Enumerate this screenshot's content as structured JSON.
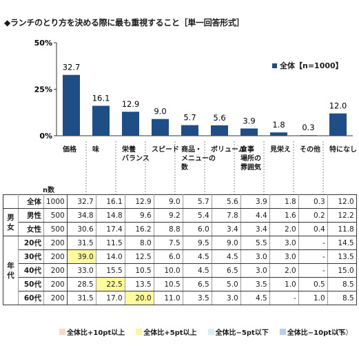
{
  "title": "◆ランチのとり方を決める際に最も重視すること［単一回答形式］",
  "chart_data": {
    "type": "bar",
    "categories": [
      "価格",
      "味",
      "栄養バランス",
      "スピード",
      "商品・メニューの数",
      "ボリューム",
      "食事場所の雰囲気",
      "見栄え",
      "その他",
      "特になし"
    ],
    "category_lines": [
      [
        "価格"
      ],
      [
        "味"
      ],
      [
        "栄養",
        "バランス"
      ],
      [
        "スピード"
      ],
      [
        "商品・",
        "メニューの",
        "数"
      ],
      [
        "ボリューム"
      ],
      [
        "食事",
        "場所の",
        "雰囲気"
      ],
      [
        "見栄え"
      ],
      [
        "その他"
      ],
      [
        "特になし"
      ]
    ],
    "series": [
      {
        "name": "全体【n=1000】",
        "values": [
          32.7,
          16.1,
          12.9,
          9.0,
          5.7,
          5.6,
          3.9,
          1.8,
          0.3,
          12.0
        ]
      }
    ],
    "value_labels": [
      "32.7",
      "16.1",
      "12.9",
      "9.0",
      "5.7",
      "5.6",
      "3.9",
      "1.8",
      "0.3",
      "12.0"
    ],
    "ylim": [
      0,
      50
    ],
    "yticks": [
      "0%",
      "25%",
      "50%"
    ],
    "bar_color": "#1f4e86",
    "legend_position": "top-right",
    "grid": false
  },
  "table": {
    "n_header": "n数",
    "rows": [
      {
        "group": "",
        "label": "全体",
        "n": "1000",
        "values": [
          "32.7",
          "16.1",
          "12.9",
          "9.0",
          "5.7",
          "5.6",
          "3.9",
          "1.8",
          "0.3",
          "12.0"
        ],
        "highlights": {}
      },
      {
        "group": "男女",
        "label": "男性",
        "n": "500",
        "values": [
          "34.8",
          "14.8",
          "9.6",
          "9.2",
          "5.4",
          "7.8",
          "4.4",
          "1.6",
          "0.2",
          "12.2"
        ],
        "highlights": {}
      },
      {
        "group": "",
        "label": "女性",
        "n": "500",
        "values": [
          "30.6",
          "17.4",
          "16.2",
          "8.8",
          "6.0",
          "3.4",
          "3.4",
          "2.0",
          "0.4",
          "11.8"
        ],
        "highlights": {}
      },
      {
        "group": "年代",
        "label": "20代",
        "n": "200",
        "values": [
          "31.5",
          "11.5",
          "8.0",
          "7.5",
          "9.5",
          "9.0",
          "5.5",
          "3.0",
          "-",
          "14.5"
        ],
        "highlights": {}
      },
      {
        "group": "",
        "label": "30代",
        "n": "200",
        "values": [
          "39.0",
          "14.0",
          "12.5",
          "6.0",
          "4.5",
          "4.5",
          "3.0",
          "3.0",
          "-",
          "13.5"
        ],
        "highlights": {
          "0": "yellow"
        }
      },
      {
        "group": "",
        "label": "40代",
        "n": "200",
        "values": [
          "33.0",
          "15.5",
          "10.5",
          "10.0",
          "4.5",
          "6.5",
          "3.0",
          "2.0",
          "-",
          "15.0"
        ],
        "highlights": {}
      },
      {
        "group": "",
        "label": "50代",
        "n": "200",
        "values": [
          "28.5",
          "22.5",
          "13.5",
          "10.5",
          "6.5",
          "5.0",
          "3.5",
          "1.0",
          "0.5",
          "8.5"
        ],
        "highlights": {
          "1": "yellow"
        }
      },
      {
        "group": "",
        "label": "60代",
        "n": "200",
        "values": [
          "31.5",
          "17.0",
          "20.0",
          "11.0",
          "3.5",
          "3.0",
          "4.5",
          "-",
          "1.0",
          "8.5"
        ],
        "highlights": {
          "2": "yellow"
        }
      }
    ]
  },
  "key": [
    {
      "label": "全体比+10pt以上",
      "color": "#fcd9bf"
    },
    {
      "label": "全体比+5pt以上",
      "color": "#fff59a"
    },
    {
      "label": "全体比−5pt以下",
      "color": "#d6f0f2"
    },
    {
      "label": "全体比−10pt以下",
      "color": "#b9cfe8"
    }
  ],
  "unit": "（%）"
}
